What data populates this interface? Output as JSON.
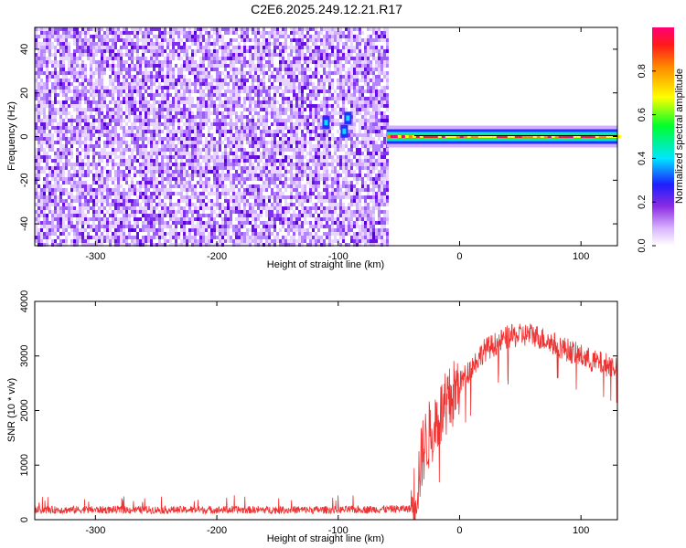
{
  "title": "C2E6.2025.249.12.21.R17",
  "chart_data": [
    {
      "type": "heatmap",
      "xlabel": "Height of straight line (km)",
      "ylabel": "Frequency (Hz)",
      "xlim": [
        -350,
        130
      ],
      "ylim": [
        -50,
        50
      ],
      "xticks": [
        -300,
        -200,
        -100,
        0,
        100
      ],
      "yticks": [
        -40,
        -20,
        0,
        20,
        40
      ],
      "noise_region": [
        -350,
        -60
      ],
      "tone_region": [
        -60,
        130
      ],
      "tone_frequency": 0,
      "colorbar": {
        "label": "Normalized spectral amplitude",
        "range": [
          0,
          1
        ],
        "ticks": [
          0.0,
          0.2,
          0.4,
          0.6,
          0.8
        ]
      }
    },
    {
      "type": "line",
      "xlabel": "Height of straight line (km)",
      "ylabel": "SNR (10 * v/v)",
      "xlim": [
        -350,
        130
      ],
      "ylim": [
        0,
        4000
      ],
      "xticks": [
        -300,
        -200,
        -100,
        0,
        100
      ],
      "yticks": [
        0,
        1000,
        2000,
        3000,
        4000
      ],
      "color": "#ee3333",
      "profile": {
        "x": [
          -350,
          -100,
          -40,
          -35,
          -30,
          -20,
          -10,
          0,
          20,
          40,
          60,
          80,
          100,
          110,
          120,
          130
        ],
        "y": [
          180,
          180,
          200,
          600,
          1300,
          1800,
          2100,
          2500,
          3100,
          3350,
          3400,
          3200,
          3000,
          2900,
          2850,
          2800
        ]
      }
    }
  ]
}
